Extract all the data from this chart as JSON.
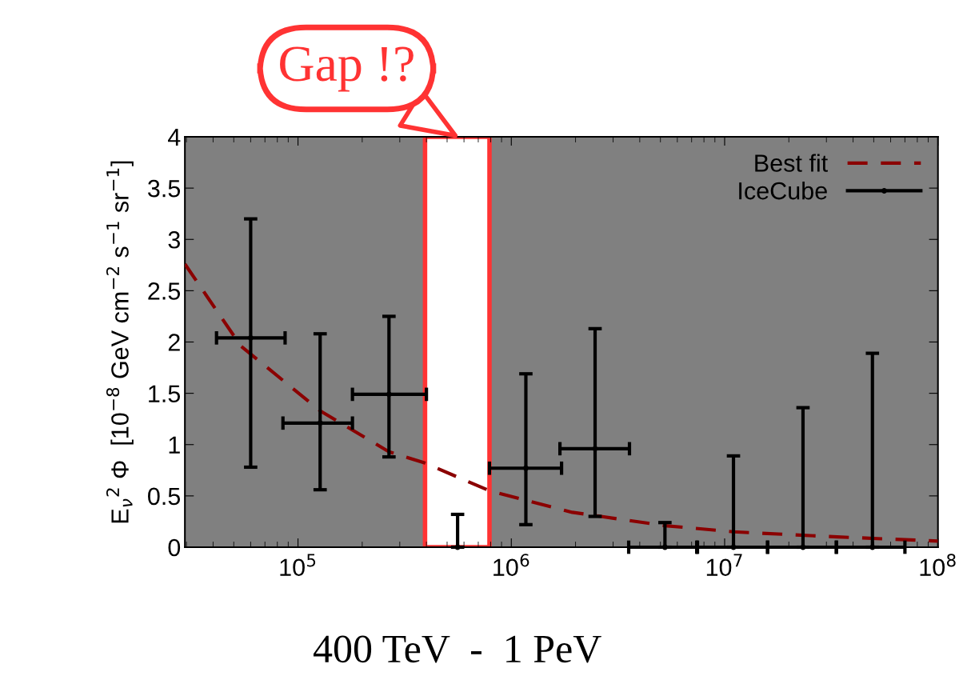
{
  "chart_data": {
    "type": "scatter",
    "ylabel": "E$_{ν}$$^{2}$ Φ  [10$^{−8}$ GeV cm$^{−2}$ s$^{−1}$ sr$^{−1}$]",
    "log": "x",
    "xlim": [
      29500,
      100000000
    ],
    "xticks": [
      {
        "value": 100000,
        "label": "10$^{5}$"
      },
      {
        "value": 1000000,
        "label": "10$^{6}$"
      },
      {
        "value": 10000000,
        "label": "10$^{7}$"
      },
      {
        "value": 100000000,
        "label": "10$^{8}$"
      }
    ],
    "ylim": [
      0,
      4
    ],
    "yticks": [
      0,
      0.5,
      1,
      1.5,
      2,
      2.5,
      3,
      3.5,
      4
    ],
    "grid": false,
    "legend": "top right",
    "series": [
      {
        "name": "Best fit",
        "type": "line",
        "color": "#8b0000",
        "line_style": "dashed",
        "marker": "none",
        "x": [
          29500,
          54000,
          127000,
          267000,
          394000,
          790000,
          1930000,
          5250000,
          11000000,
          33700000,
          100000000
        ],
        "values": [
          2.76,
          1.96,
          1.33,
          0.93,
          0.82,
          0.55,
          0.34,
          0.21,
          0.15,
          0.1,
          0.06
        ]
      },
      {
        "name": "IceCube",
        "color": "#000000",
        "marker": "circle",
        "x": [
          60000,
          127000,
          267000,
          560000,
          1170000,
          2470000,
          5250000,
          11000000,
          23300000,
          49300000
        ],
        "values": [
          2.04,
          1.21,
          1.49,
          0,
          0.77,
          0.96,
          0,
          0,
          0,
          0
        ],
        "errors": [
          [
            0.78,
            3.2
          ],
          [
            0.56,
            2.08
          ],
          [
            0.88,
            2.25
          ],
          [
            0,
            0.32
          ],
          [
            0.22,
            1.69
          ],
          [
            0.3,
            2.13
          ],
          [
            0,
            0.24
          ],
          [
            0,
            0.89
          ],
          [
            0,
            1.36
          ],
          [
            0,
            1.89
          ]
        ],
        "xerrors": [
          [
            41500,
            87000
          ],
          [
            85000,
            180000
          ],
          [
            180000,
            400000
          ],
          null,
          [
            790000,
            1720000
          ],
          [
            1690000,
            3580000
          ],
          [
            3550000,
            7400000
          ],
          [
            7460000,
            15900000
          ],
          [
            15900000,
            33400000
          ],
          [
            33400000,
            70000000
          ]
        ]
      }
    ],
    "bands": [
      {
        "axis": "x",
        "from": 394000,
        "to": 790000,
        "label": "400 TeV  -  1 PeV",
        "color": "#ffffff"
      }
    ],
    "annotations": [
      "Gap !?"
    ]
  }
}
